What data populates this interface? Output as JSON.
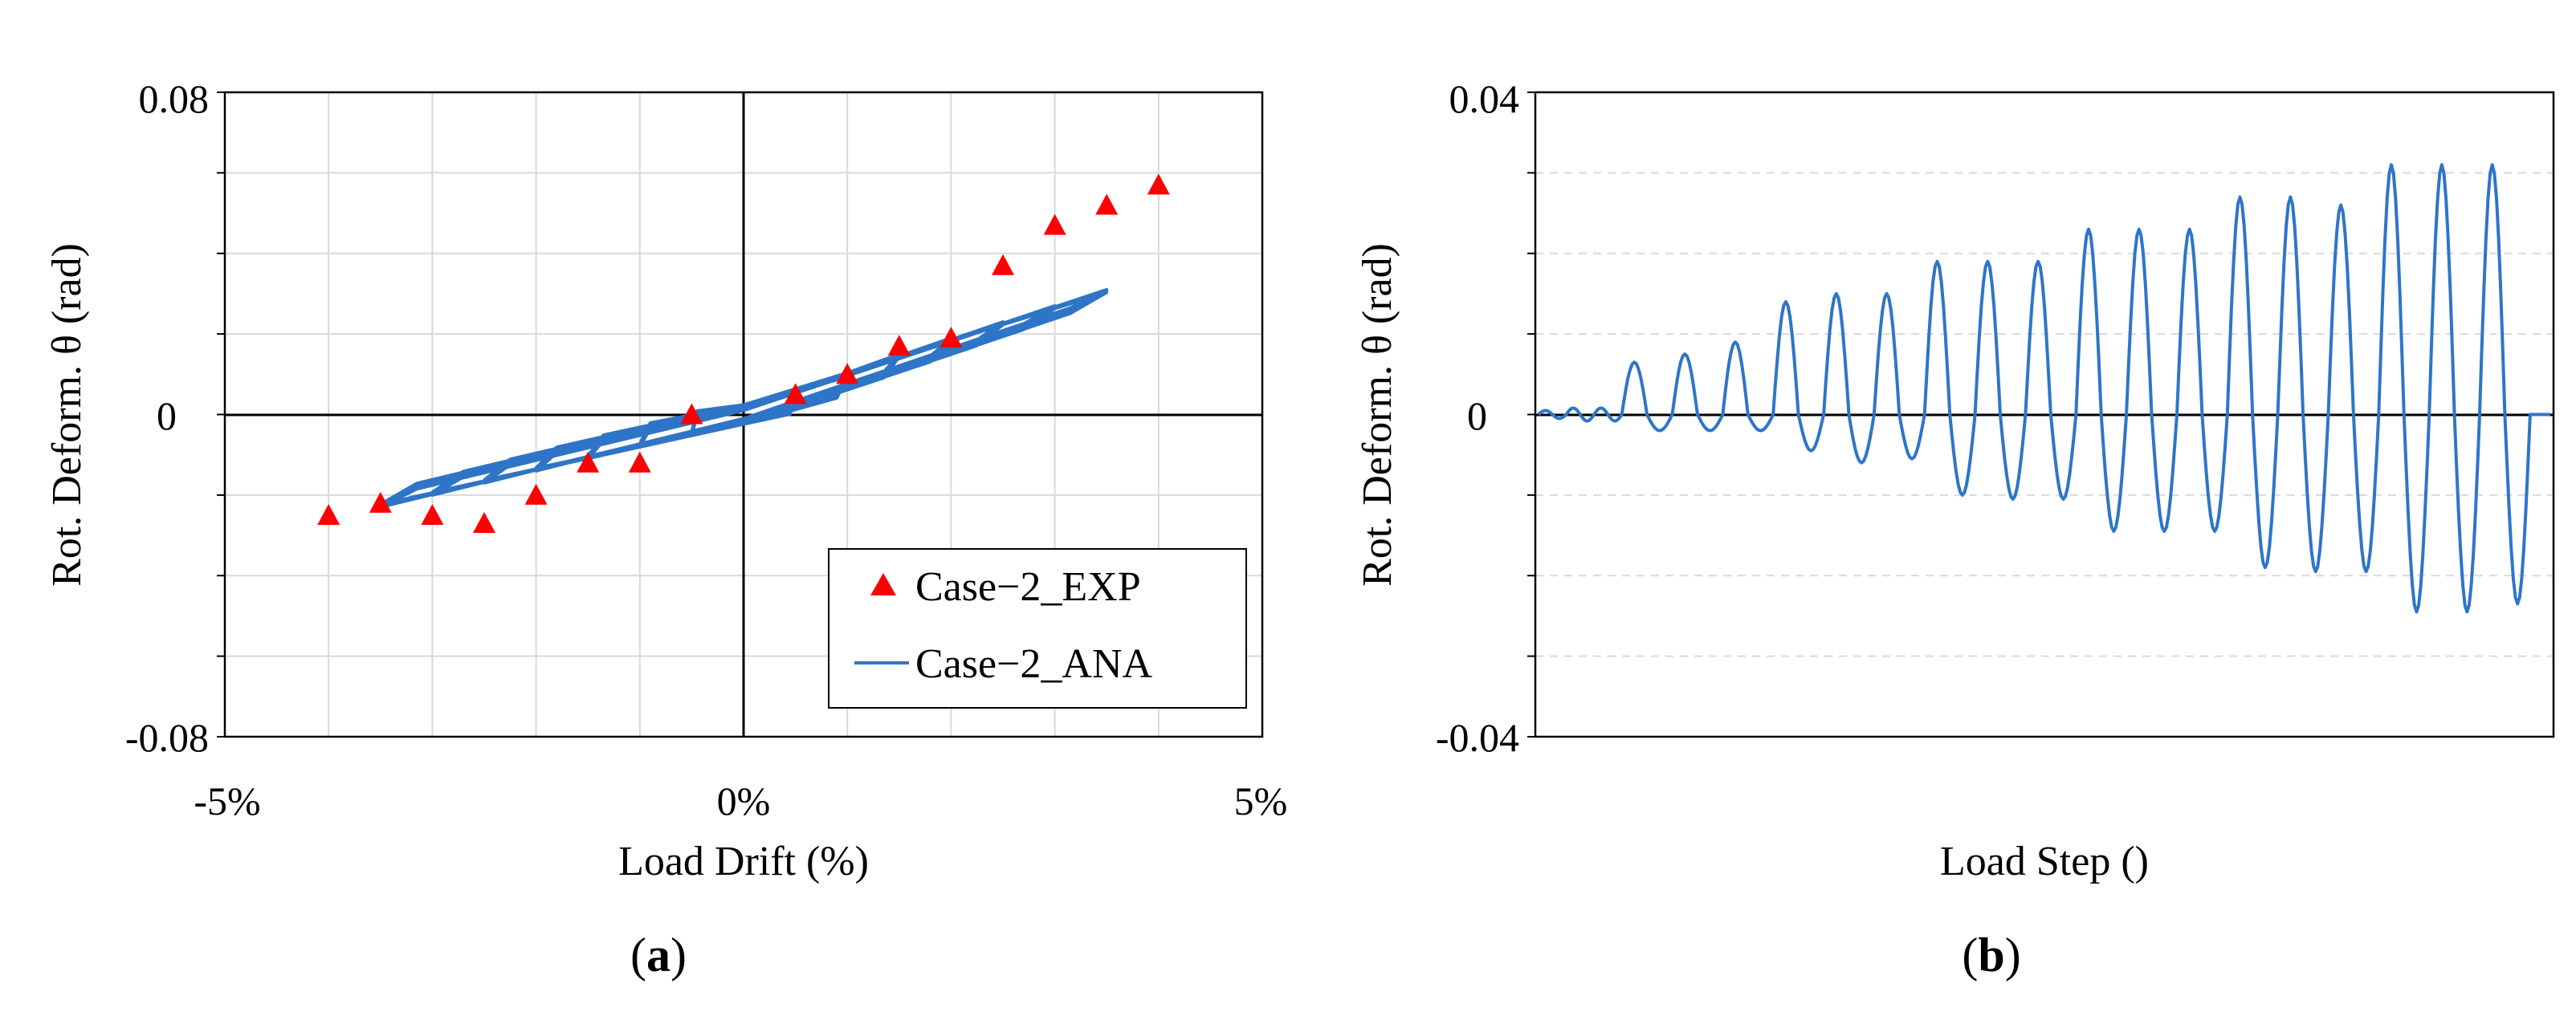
{
  "chart_data": [
    {
      "type": "scatter",
      "panel_label": "a",
      "xlabel": "Load Drift  (%)",
      "ylabel": "Rot. Deform. θ (rad)",
      "xlim": [
        -5,
        5
      ],
      "ylim": [
        -0.08,
        0.08
      ],
      "x_ticks": [
        "-5%",
        "0%",
        "5%"
      ],
      "y_ticks": [
        "0.08",
        "0",
        "-0.08"
      ],
      "grid": true,
      "legend_position": "bottom-right",
      "series": [
        {
          "name": "Case−2_EXP",
          "marker": "triangle",
          "color": "#ff0000",
          "x": [
            -4.0,
            -3.5,
            -3.0,
            -2.5,
            -2.0,
            -1.5,
            -1.0,
            -0.5,
            0.5,
            1.0,
            1.5,
            2.0,
            2.5,
            3.0,
            3.5,
            4.0
          ],
          "y": [
            -0.025,
            -0.022,
            -0.025,
            -0.027,
            -0.02,
            -0.012,
            -0.012,
            0.0,
            0.005,
            0.01,
            0.017,
            0.019,
            0.037,
            0.047,
            0.052,
            0.057
          ]
        },
        {
          "name": "Case−2_ANA",
          "marker": "line",
          "color": "#2e75c8",
          "description_loops": [
            {
              "amp": 0.5,
              "yp": 0.006,
              "yn": -0.005
            },
            {
              "amp": 1.0,
              "yp": 0.01,
              "yn": -0.008
            },
            {
              "amp": 1.5,
              "yp": 0.015,
              "yn": -0.011
            },
            {
              "amp": 2.0,
              "yp": 0.019,
              "yn": -0.014
            },
            {
              "amp": 2.5,
              "yp": 0.023,
              "yn": -0.017
            },
            {
              "amp": 3.0,
              "yp": 0.027,
              "yn": -0.02
            },
            {
              "amp": 3.5,
              "yp": 0.031,
              "yn": -0.023
            }
          ]
        }
      ]
    },
    {
      "type": "line",
      "panel_label": "b",
      "xlabel": "Load Step  ()",
      "ylabel": "Rot. Deform. θ (rad)",
      "ylim": [
        -0.04,
        0.04
      ],
      "y_ticks": [
        "0.04",
        "0",
        "-0.04"
      ],
      "grid": true,
      "series": [
        {
          "name": "Case−2_ANA",
          "color": "#2e75c8",
          "cycle_peaks_pos": [
            0.0005,
            0.0008,
            0.0008,
            0.0065,
            0.0075,
            0.009,
            0.014,
            0.015,
            0.015,
            0.019,
            0.019,
            0.019,
            0.023,
            0.023,
            0.023,
            0.027,
            0.027,
            0.026,
            0.031,
            0.031,
            0.031
          ],
          "cycle_peaks_neg": [
            -0.0005,
            -0.0008,
            -0.0008,
            -0.002,
            -0.002,
            -0.002,
            -0.0045,
            -0.006,
            -0.0055,
            -0.01,
            -0.0105,
            -0.0105,
            -0.0145,
            -0.0145,
            -0.0145,
            -0.019,
            -0.0195,
            -0.0195,
            -0.0245,
            -0.0245,
            -0.0235
          ]
        }
      ]
    }
  ]
}
